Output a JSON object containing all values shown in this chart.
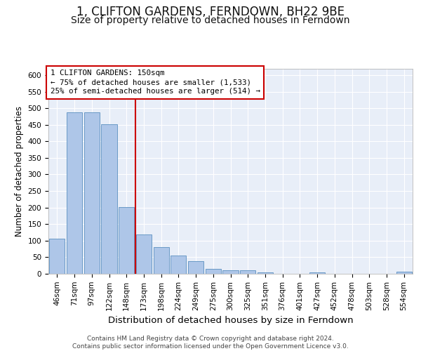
{
  "title1": "1, CLIFTON GARDENS, FERNDOWN, BH22 9BE",
  "title2": "Size of property relative to detached houses in Ferndown",
  "xlabel": "Distribution of detached houses by size in Ferndown",
  "ylabel": "Number of detached properties",
  "categories": [
    "46sqm",
    "71sqm",
    "97sqm",
    "122sqm",
    "148sqm",
    "173sqm",
    "198sqm",
    "224sqm",
    "249sqm",
    "275sqm",
    "300sqm",
    "325sqm",
    "351sqm",
    "376sqm",
    "401sqm",
    "427sqm",
    "452sqm",
    "478sqm",
    "503sqm",
    "528sqm",
    "554sqm"
  ],
  "values": [
    105,
    487,
    487,
    452,
    202,
    119,
    81,
    55,
    39,
    15,
    10,
    10,
    5,
    0,
    0,
    5,
    0,
    0,
    0,
    0,
    7
  ],
  "bar_color": "#aec6e8",
  "bar_edge_color": "#5a8fc0",
  "vline_index": 4,
  "vline_color": "#cc0000",
  "annotation_text": "1 CLIFTON GARDENS: 150sqm\n← 75% of detached houses are smaller (1,533)\n25% of semi-detached houses are larger (514) →",
  "annotation_box_color": "#cc0000",
  "bg_color": "#e8eef8",
  "grid_color": "#ffffff",
  "ylim": [
    0,
    620
  ],
  "yticks": [
    0,
    50,
    100,
    150,
    200,
    250,
    300,
    350,
    400,
    450,
    500,
    550,
    600
  ],
  "footer": "Contains HM Land Registry data © Crown copyright and database right 2024.\nContains public sector information licensed under the Open Government Licence v3.0.",
  "title1_fontsize": 12,
  "title2_fontsize": 10,
  "xlabel_fontsize": 9.5,
  "ylabel_fontsize": 8.5,
  "tick_fontsize": 7.5,
  "footer_fontsize": 6.5
}
